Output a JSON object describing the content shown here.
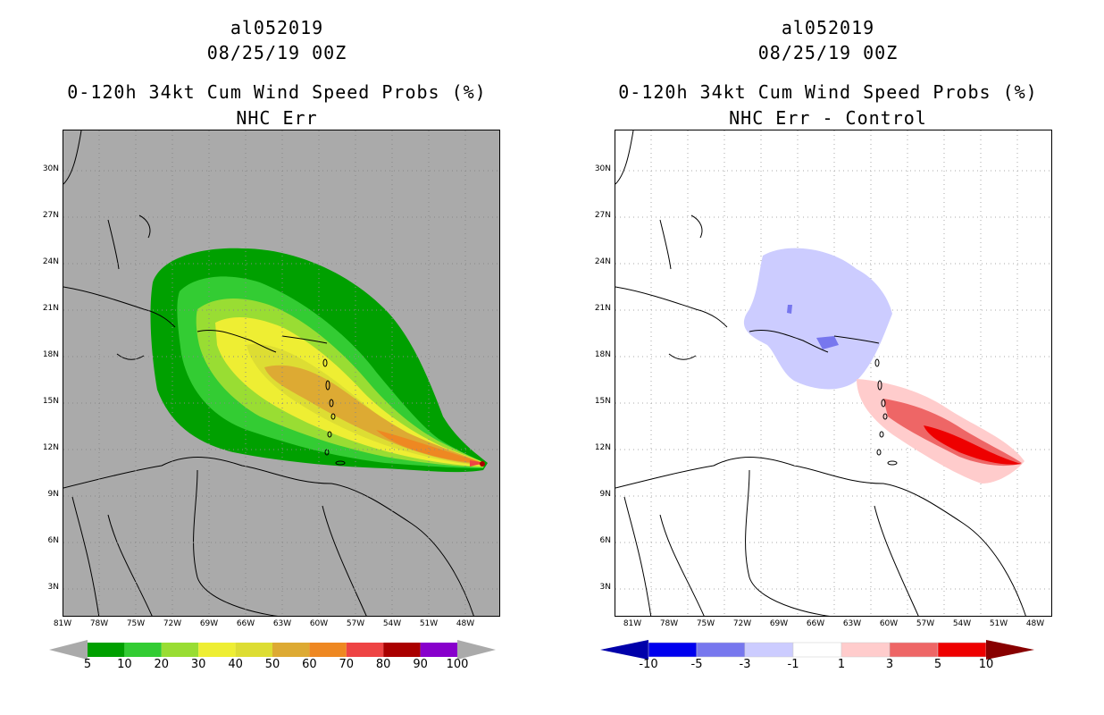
{
  "left": {
    "storm_id": "al052019",
    "datetime": "08/25/19 00Z",
    "product": "0-120h 34kt Cum Wind Speed Probs (%)",
    "subtitle": "NHC Err",
    "background_color": "#aaaaaa",
    "colorbar": {
      "labels": [
        "5",
        "10",
        "20",
        "30",
        "40",
        "50",
        "60",
        "70",
        "80",
        "90",
        "100"
      ],
      "colors": [
        "#00a000",
        "#33cc33",
        "#99dd33",
        "#eeee33",
        "#dddd33",
        "#ddaa33",
        "#ee8822",
        "#ee4444",
        "#aa0000",
        "#8800cc"
      ]
    }
  },
  "right": {
    "storm_id": "al052019",
    "datetime": "08/25/19 00Z",
    "product": "0-120h 34kt Cum Wind Speed Probs (%)",
    "subtitle": "NHC Err - Control",
    "background_color": "#ffffff",
    "colorbar": {
      "labels": [
        "-10",
        "-5",
        "-3",
        "-1",
        "1",
        "3",
        "5",
        "10"
      ],
      "colors": [
        "#0000aa",
        "#0000ee",
        "#7777ee",
        "#ccccff",
        "#ffffff",
        "#ffcccc",
        "#ee6666",
        "#ee0000",
        "#880000"
      ]
    }
  },
  "lat_ticks": [
    "30N",
    "27N",
    "24N",
    "21N",
    "18N",
    "15N",
    "12N",
    "9N",
    "6N",
    "3N"
  ],
  "lon_ticks": [
    "81W",
    "78W",
    "75W",
    "72W",
    "69W",
    "66W",
    "63W",
    "60W",
    "57W",
    "54W",
    "51W",
    "48W"
  ]
}
